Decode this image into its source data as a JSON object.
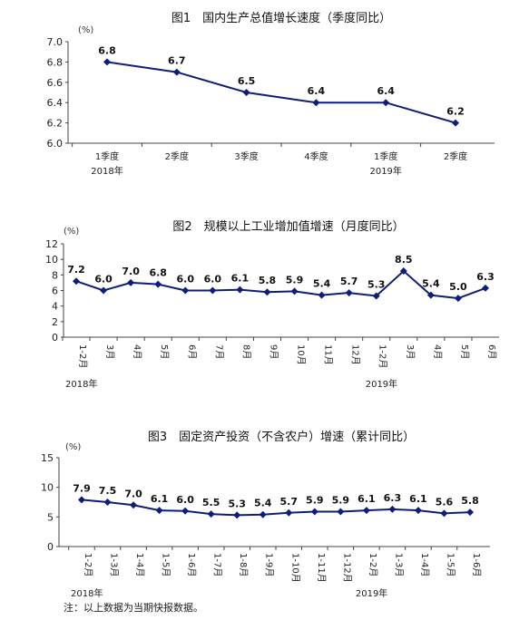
{
  "note": "注：以上数据为当期快报数据。",
  "chart_data": [
    {
      "type": "line",
      "title": "图1　国内生产总值增长速度（季度同比）",
      "unit": "(%)",
      "ylim": [
        6.0,
        7.0
      ],
      "yticks": [
        "6.0",
        "6.2",
        "6.4",
        "6.6",
        "6.8",
        "7.0"
      ],
      "categories": [
        "1季度",
        "2季度",
        "3季度",
        "4季度",
        "1季度",
        "2季度"
      ],
      "year_labels": [
        {
          "index": 0,
          "text": "2018年"
        },
        {
          "index": 4,
          "text": "2019年"
        }
      ],
      "values": [
        6.8,
        6.7,
        6.5,
        6.4,
        6.4,
        6.2
      ],
      "labels": [
        "6.8",
        "6.7",
        "6.5",
        "6.4",
        "6.4",
        "6.2"
      ],
      "color": "#0f1d7a",
      "grid": false
    },
    {
      "type": "line",
      "title": "图2　规模以上工业增加值增速（月度同比）",
      "unit": "(%)",
      "ylim": [
        0,
        12
      ],
      "yticks": [
        "0",
        "2",
        "4",
        "6",
        "8",
        "10",
        "12"
      ],
      "categories": [
        "1-2月",
        "3月",
        "4月",
        "5月",
        "6月",
        "7月",
        "8月",
        "9月",
        "10月",
        "11月",
        "12月",
        "1-2月",
        "3月",
        "4月",
        "5月",
        "6月"
      ],
      "year_labels": [
        {
          "index": 0,
          "text": "2018年"
        },
        {
          "index": 11,
          "text": "2019年"
        }
      ],
      "values": [
        7.2,
        6.0,
        7.0,
        6.8,
        6.0,
        6.0,
        6.1,
        5.8,
        5.9,
        5.4,
        5.7,
        5.3,
        8.5,
        5.4,
        5.0,
        6.3
      ],
      "labels": [
        "7.2",
        "6.0",
        "7.0",
        "6.8",
        "6.0",
        "6.0",
        "6.1",
        "5.8",
        "5.9",
        "5.4",
        "5.7",
        "5.3",
        "8.5",
        "5.4",
        "5.0",
        "6.3"
      ],
      "color": "#0f1d7a",
      "grid": false
    },
    {
      "type": "line",
      "title": "图3　固定资产投资（不含农户）增速（累计同比）",
      "unit": "(%)",
      "ylim": [
        0,
        15
      ],
      "yticks": [
        "0",
        "5",
        "10",
        "15"
      ],
      "categories": [
        "1-2月",
        "1-3月",
        "1-4月",
        "1-5月",
        "1-6月",
        "1-7月",
        "1-8月",
        "1-9月",
        "1-10月",
        "1-11月",
        "1-12月",
        "1-2月",
        "1-3月",
        "1-4月",
        "1-5月",
        "1-6月"
      ],
      "year_labels": [
        {
          "index": 0,
          "text": "2018年"
        },
        {
          "index": 11,
          "text": "2019年"
        }
      ],
      "values": [
        7.9,
        7.5,
        7.0,
        6.1,
        6.0,
        5.5,
        5.3,
        5.4,
        5.7,
        5.9,
        5.9,
        6.1,
        6.3,
        6.1,
        5.6,
        5.8
      ],
      "labels": [
        "7.9",
        "7.5",
        "7.0",
        "6.1",
        "6.0",
        "5.5",
        "5.3",
        "5.4",
        "5.7",
        "5.9",
        "5.9",
        "6.1",
        "6.3",
        "6.1",
        "5.6",
        "5.8"
      ],
      "color": "#0f1d7a",
      "grid": false
    }
  ]
}
